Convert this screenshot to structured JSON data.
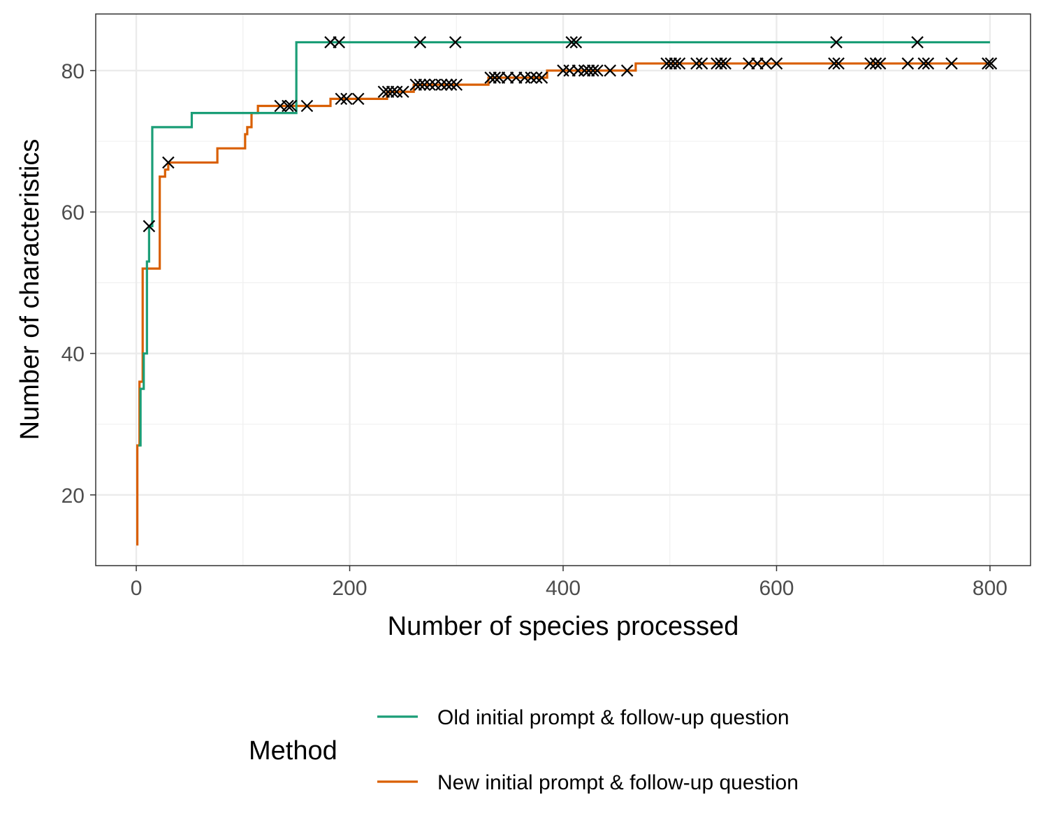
{
  "chart_data": {
    "type": "line",
    "title": "",
    "xlabel": "Number of species processed",
    "ylabel": "Number of characteristics",
    "xlim": [
      -38,
      838
    ],
    "ylim": [
      10,
      88
    ],
    "x_ticks": [
      0,
      200,
      400,
      600,
      800
    ],
    "y_ticks": [
      20,
      40,
      60,
      80
    ],
    "grid": true,
    "legend": {
      "title": "Method",
      "position": "bottom"
    },
    "series": [
      {
        "name": "Old initial prompt & follow-up question",
        "color": "#1b9e77",
        "step": true,
        "points": [
          [
            2,
            27
          ],
          [
            4,
            35
          ],
          [
            7,
            40
          ],
          [
            10,
            53
          ],
          [
            12,
            58
          ],
          [
            15,
            72
          ],
          [
            52,
            74
          ],
          [
            150,
            84
          ],
          [
            800,
            84
          ]
        ],
        "markers": [
          [
            12,
            58
          ],
          [
            182,
            84
          ],
          [
            190,
            84
          ],
          [
            266,
            84
          ],
          [
            299,
            84
          ],
          [
            408,
            84
          ],
          [
            412,
            84
          ],
          [
            656,
            84
          ],
          [
            732,
            84
          ]
        ]
      },
      {
        "name": "New initial prompt & follow-up question",
        "color": "#d95f02",
        "step": true,
        "points": [
          [
            0,
            13
          ],
          [
            1,
            27
          ],
          [
            3,
            36
          ],
          [
            6,
            52
          ],
          [
            22,
            65
          ],
          [
            27,
            66
          ],
          [
            30,
            67
          ],
          [
            76,
            69
          ],
          [
            102,
            71
          ],
          [
            104,
            72
          ],
          [
            108,
            74
          ],
          [
            114,
            75
          ],
          [
            182,
            76
          ],
          [
            235,
            77
          ],
          [
            260,
            78
          ],
          [
            330,
            79
          ],
          [
            385,
            80
          ],
          [
            468,
            81
          ],
          [
            800,
            81
          ]
        ],
        "markers": [
          [
            30,
            67
          ],
          [
            135,
            75
          ],
          [
            142,
            75
          ],
          [
            145,
            75
          ],
          [
            160,
            75
          ],
          [
            192,
            76
          ],
          [
            197,
            76
          ],
          [
            208,
            76
          ],
          [
            232,
            77
          ],
          [
            236,
            77
          ],
          [
            240,
            77
          ],
          [
            244,
            77
          ],
          [
            250,
            77
          ],
          [
            262,
            78
          ],
          [
            266,
            78
          ],
          [
            270,
            78
          ],
          [
            275,
            78
          ],
          [
            280,
            78
          ],
          [
            286,
            78
          ],
          [
            291,
            78
          ],
          [
            295,
            78
          ],
          [
            300,
            78
          ],
          [
            332,
            79
          ],
          [
            336,
            79
          ],
          [
            340,
            79
          ],
          [
            348,
            79
          ],
          [
            356,
            79
          ],
          [
            364,
            79
          ],
          [
            370,
            79
          ],
          [
            375,
            79
          ],
          [
            380,
            79
          ],
          [
            400,
            80
          ],
          [
            406,
            80
          ],
          [
            414,
            80
          ],
          [
            420,
            80
          ],
          [
            424,
            80
          ],
          [
            428,
            80
          ],
          [
            432,
            80
          ],
          [
            444,
            80
          ],
          [
            460,
            80
          ],
          [
            497,
            81
          ],
          [
            501,
            81
          ],
          [
            505,
            81
          ],
          [
            509,
            81
          ],
          [
            525,
            81
          ],
          [
            530,
            81
          ],
          [
            544,
            81
          ],
          [
            548,
            81
          ],
          [
            552,
            81
          ],
          [
            574,
            81
          ],
          [
            582,
            81
          ],
          [
            590,
            81
          ],
          [
            600,
            81
          ],
          [
            654,
            81
          ],
          [
            658,
            81
          ],
          [
            688,
            81
          ],
          [
            693,
            81
          ],
          [
            697,
            81
          ],
          [
            723,
            81
          ],
          [
            738,
            81
          ],
          [
            742,
            81
          ],
          [
            764,
            81
          ],
          [
            798,
            81
          ],
          [
            801,
            81
          ]
        ]
      }
    ]
  }
}
